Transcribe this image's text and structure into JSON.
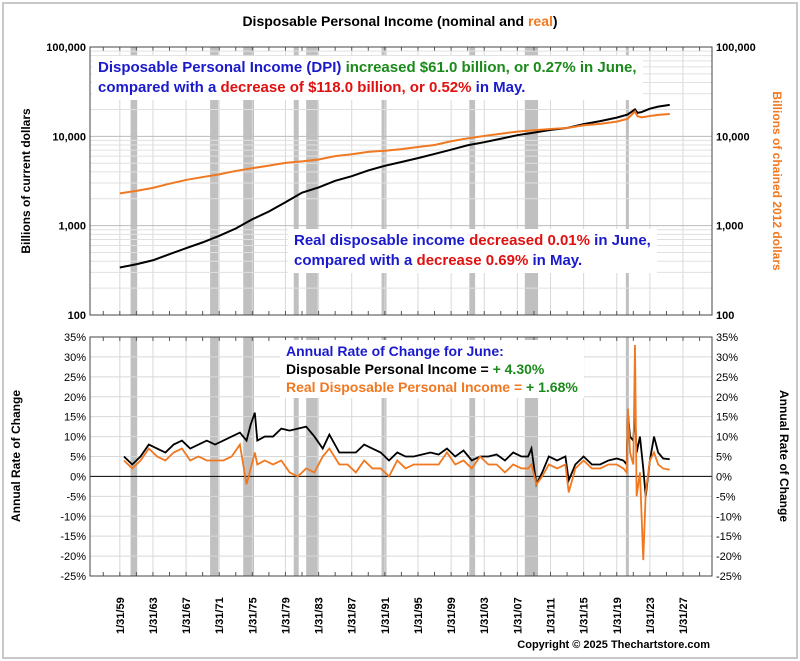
{
  "chart_data": [
    {
      "type": "line",
      "title": "Disposable Personal Income",
      "title_suffix_nominal": "(nominal and ",
      "title_suffix_real": "real",
      "title_close": ")",
      "yscale": "log",
      "ylabel_left": "Billions of current dollars",
      "ylabel_right": "Billions of chained 2012 dollars",
      "ylim": [
        100,
        100000
      ],
      "yticks": [
        "100",
        "1,000",
        "10,000",
        "100,000"
      ],
      "ytick_values": [
        100,
        1000,
        10000,
        100000
      ],
      "series": [
        {
          "name": "Disposable Personal Income (nominal)",
          "color": "#000000",
          "x": [
            1959,
            1961,
            1963,
            1965,
            1967,
            1969,
            1971,
            1973,
            1975,
            1977,
            1979,
            1981,
            1983,
            1985,
            1987,
            1989,
            1991,
            1993,
            1995,
            1997,
            1999,
            2001,
            2003,
            2005,
            2007,
            2009,
            2011,
            2013,
            2015,
            2017,
            2019,
            2020.3,
            2021.2,
            2021.5,
            2022,
            2023,
            2024,
            2025.4
          ],
          "y": [
            340,
            370,
            410,
            480,
            560,
            650,
            770,
            930,
            1180,
            1440,
            1830,
            2340,
            2680,
            3180,
            3580,
            4150,
            4680,
            5160,
            5700,
            6350,
            7090,
            7950,
            8600,
            9400,
            10300,
            11000,
            11800,
            12400,
            13700,
            14800,
            16200,
            17500,
            20000,
            18300,
            18700,
            20400,
            21500,
            22500
          ]
        },
        {
          "name": "Real Disposable Personal Income",
          "color": "#f07820",
          "x": [
            1959,
            1961,
            1963,
            1965,
            1967,
            1969,
            1971,
            1973,
            1975,
            1977,
            1979,
            1981,
            1983,
            1985,
            1987,
            1989,
            1991,
            1993,
            1995,
            1997,
            1999,
            2001,
            2003,
            2005,
            2007,
            2009,
            2011,
            2013,
            2015,
            2017,
            2019,
            2020.3,
            2021.2,
            2021.5,
            2022,
            2023,
            2024,
            2025.4
          ],
          "y": [
            2300,
            2450,
            2650,
            2950,
            3250,
            3500,
            3750,
            4100,
            4400,
            4700,
            5050,
            5250,
            5500,
            6000,
            6300,
            6700,
            6900,
            7200,
            7600,
            8000,
            8800,
            9500,
            10100,
            10700,
            11300,
            11700,
            12100,
            12400,
            13300,
            13800,
            14600,
            15700,
            19000,
            16800,
            16300,
            16900,
            17400,
            17800
          ]
        }
      ],
      "recessions": [
        [
          1960.3,
          1961.1
        ],
        [
          1969.9,
          1970.9
        ],
        [
          1973.9,
          1975.2
        ],
        [
          1980.0,
          1980.6
        ],
        [
          1981.5,
          1982.9
        ],
        [
          1990.6,
          1991.2
        ],
        [
          2001.2,
          2001.9
        ],
        [
          2007.9,
          2009.5
        ],
        [
          2020.1,
          2020.4
        ]
      ],
      "annotations": {
        "dpi_line1_a": "Disposable Personal Income (DPI)",
        "dpi_line1_b": "increased $61.0 billion, or 0.27% in June,",
        "dpi_line2_a": "compared with a",
        "dpi_line2_b": "decrease of $118.0 billion, or 0.52%",
        "dpi_line2_c": "in May.",
        "real_line1_a": "Real disposable income",
        "real_line1_b": "decreased 0.01%",
        "real_line1_c": "in June,",
        "real_line2_a": "compared with a",
        "real_line2_b": "decrease 0.69%",
        "real_line2_c": "in May."
      }
    },
    {
      "type": "line",
      "ylabel_left": "Annual Rate of Change",
      "ylabel_right": "Annual Rate of Change",
      "ylim": [
        -25,
        35
      ],
      "yticks": [
        "-25%",
        "-20%",
        "-15%",
        "-10%",
        "-5%",
        "0%",
        "5%",
        "10%",
        "15%",
        "20%",
        "25%",
        "30%",
        "35%"
      ],
      "ytick_values": [
        -25,
        -20,
        -15,
        -10,
        -5,
        0,
        5,
        10,
        15,
        20,
        25,
        30,
        35
      ],
      "xticks": [
        "1/31/59",
        "1/31/63",
        "1/31/67",
        "1/31/71",
        "1/31/75",
        "1/31/79",
        "1/31/83",
        "1/31/87",
        "1/31/91",
        "1/31/95",
        "1/31/99",
        "1/31/03",
        "1/31/07",
        "1/31/11",
        "1/31/15",
        "1/31/19",
        "1/31/23",
        "1/31/27"
      ],
      "xtick_values": [
        1959,
        1963,
        1967,
        1971,
        1975,
        1979,
        1983,
        1987,
        1991,
        1995,
        1999,
        2003,
        2007,
        2011,
        2015,
        2019,
        2023,
        2027
      ],
      "series": [
        {
          "name": "Disposable Personal Income",
          "color": "#000000",
          "x": [
            1959.5,
            1960.5,
            1961.5,
            1962.5,
            1963.5,
            1964.5,
            1965.5,
            1966.5,
            1967.5,
            1968.5,
            1969.5,
            1970.5,
            1971.5,
            1972.5,
            1973.5,
            1974.3,
            1974.8,
            1975.3,
            1975.6,
            1976.5,
            1977.5,
            1978.5,
            1979.5,
            1980.5,
            1981.5,
            1982.5,
            1983.5,
            1984.3,
            1985.5,
            1986.5,
            1987.5,
            1988.5,
            1989.5,
            1990.5,
            1991.5,
            1992.5,
            1993.5,
            1994.5,
            1995.5,
            1996.5,
            1997.5,
            1998.5,
            1999.5,
            2000.5,
            2001.5,
            2002.5,
            2003.5,
            2004.5,
            2005.5,
            2006.5,
            2007.5,
            2008.3,
            2008.7,
            2009.3,
            2010.0,
            2010.8,
            2011.8,
            2012.8,
            2013.2,
            2014.0,
            2015.0,
            2016.0,
            2017.0,
            2018.0,
            2019.0,
            2019.8,
            2020.2,
            2020.35,
            2020.6,
            2021.0,
            2021.2,
            2021.4,
            2021.8,
            2022.2,
            2022.5,
            2023.0,
            2023.5,
            2024.0,
            2024.6,
            2025.4
          ],
          "y": [
            5,
            3,
            5,
            8,
            7,
            6,
            8,
            9,
            7,
            8,
            9,
            8,
            9,
            10,
            11,
            9,
            13,
            16,
            9,
            10,
            10,
            12,
            11.5,
            12,
            12.5,
            10,
            7,
            10.5,
            6,
            6,
            6,
            8,
            7,
            6,
            4,
            6,
            5,
            5,
            5.5,
            6,
            5.5,
            7,
            5,
            6.5,
            4,
            5,
            5,
            5.5,
            4,
            6,
            5,
            5,
            7,
            -2,
            1,
            5,
            4,
            5,
            -1,
            3,
            5,
            3,
            3,
            4,
            4.5,
            4,
            3,
            16,
            10,
            9,
            16,
            6,
            10,
            2,
            -5,
            4,
            10,
            6,
            4.5,
            4.3
          ]
        },
        {
          "name": "Real Disposable Personal Income",
          "color": "#f07820",
          "x": [
            1959.5,
            1960.5,
            1961.5,
            1962.5,
            1963.5,
            1964.5,
            1965.5,
            1966.5,
            1967.5,
            1968.5,
            1969.5,
            1970.5,
            1971.5,
            1972.5,
            1973.5,
            1974.3,
            1974.8,
            1975.3,
            1975.6,
            1976.5,
            1977.5,
            1978.5,
            1979.5,
            1980.5,
            1981.5,
            1982.5,
            1983.5,
            1984.3,
            1985.5,
            1986.5,
            1987.5,
            1988.5,
            1989.5,
            1990.5,
            1991.5,
            1992.5,
            1993.5,
            1994.5,
            1995.5,
            1996.5,
            1997.5,
            1998.5,
            1999.5,
            2000.5,
            2001.5,
            2002.5,
            2003.5,
            2004.5,
            2005.5,
            2006.5,
            2007.5,
            2008.3,
            2008.7,
            2009.3,
            2010.0,
            2010.8,
            2011.8,
            2012.8,
            2013.2,
            2014.0,
            2015.0,
            2016.0,
            2017.0,
            2018.0,
            2019.0,
            2019.8,
            2020.2,
            2020.35,
            2020.6,
            2021.0,
            2021.2,
            2021.4,
            2021.8,
            2022.2,
            2022.5,
            2023.0,
            2023.5,
            2024.0,
            2024.6,
            2025.4
          ],
          "y": [
            4,
            2,
            4,
            7,
            5,
            4,
            6,
            7,
            4,
            5,
            4,
            4,
            4,
            5,
            8,
            -2,
            2,
            6,
            3,
            4,
            3,
            4,
            1,
            0,
            2,
            1,
            5,
            7,
            3,
            3,
            1,
            4,
            2,
            2,
            0,
            4,
            2,
            3,
            3,
            3,
            3,
            6,
            3,
            4,
            2,
            5,
            3,
            3,
            1,
            3,
            2,
            2,
            3,
            -2,
            0,
            3,
            2,
            3,
            -4,
            2,
            4,
            2,
            2,
            3,
            3,
            2,
            1,
            17,
            6,
            3,
            33,
            -5,
            1,
            -21,
            -4,
            4,
            6,
            3,
            2,
            1.68
          ]
        }
      ],
      "annotation": {
        "title": "Annual Rate of Change for June:",
        "dpi_label": "Disposable Personal Income = ",
        "dpi_value": "+ 4.30%",
        "real_label": "Real Disposable Personal Income = ",
        "real_value": "+ 1.68%"
      }
    }
  ],
  "copyright": "Copyright © 2025 Thechartstore.com",
  "colors": {
    "nominal": "#000000",
    "real": "#f07820",
    "recession": "#c0c0c0",
    "blue": "#1a1acc",
    "green": "#1a8a1a",
    "red": "#e01010"
  }
}
